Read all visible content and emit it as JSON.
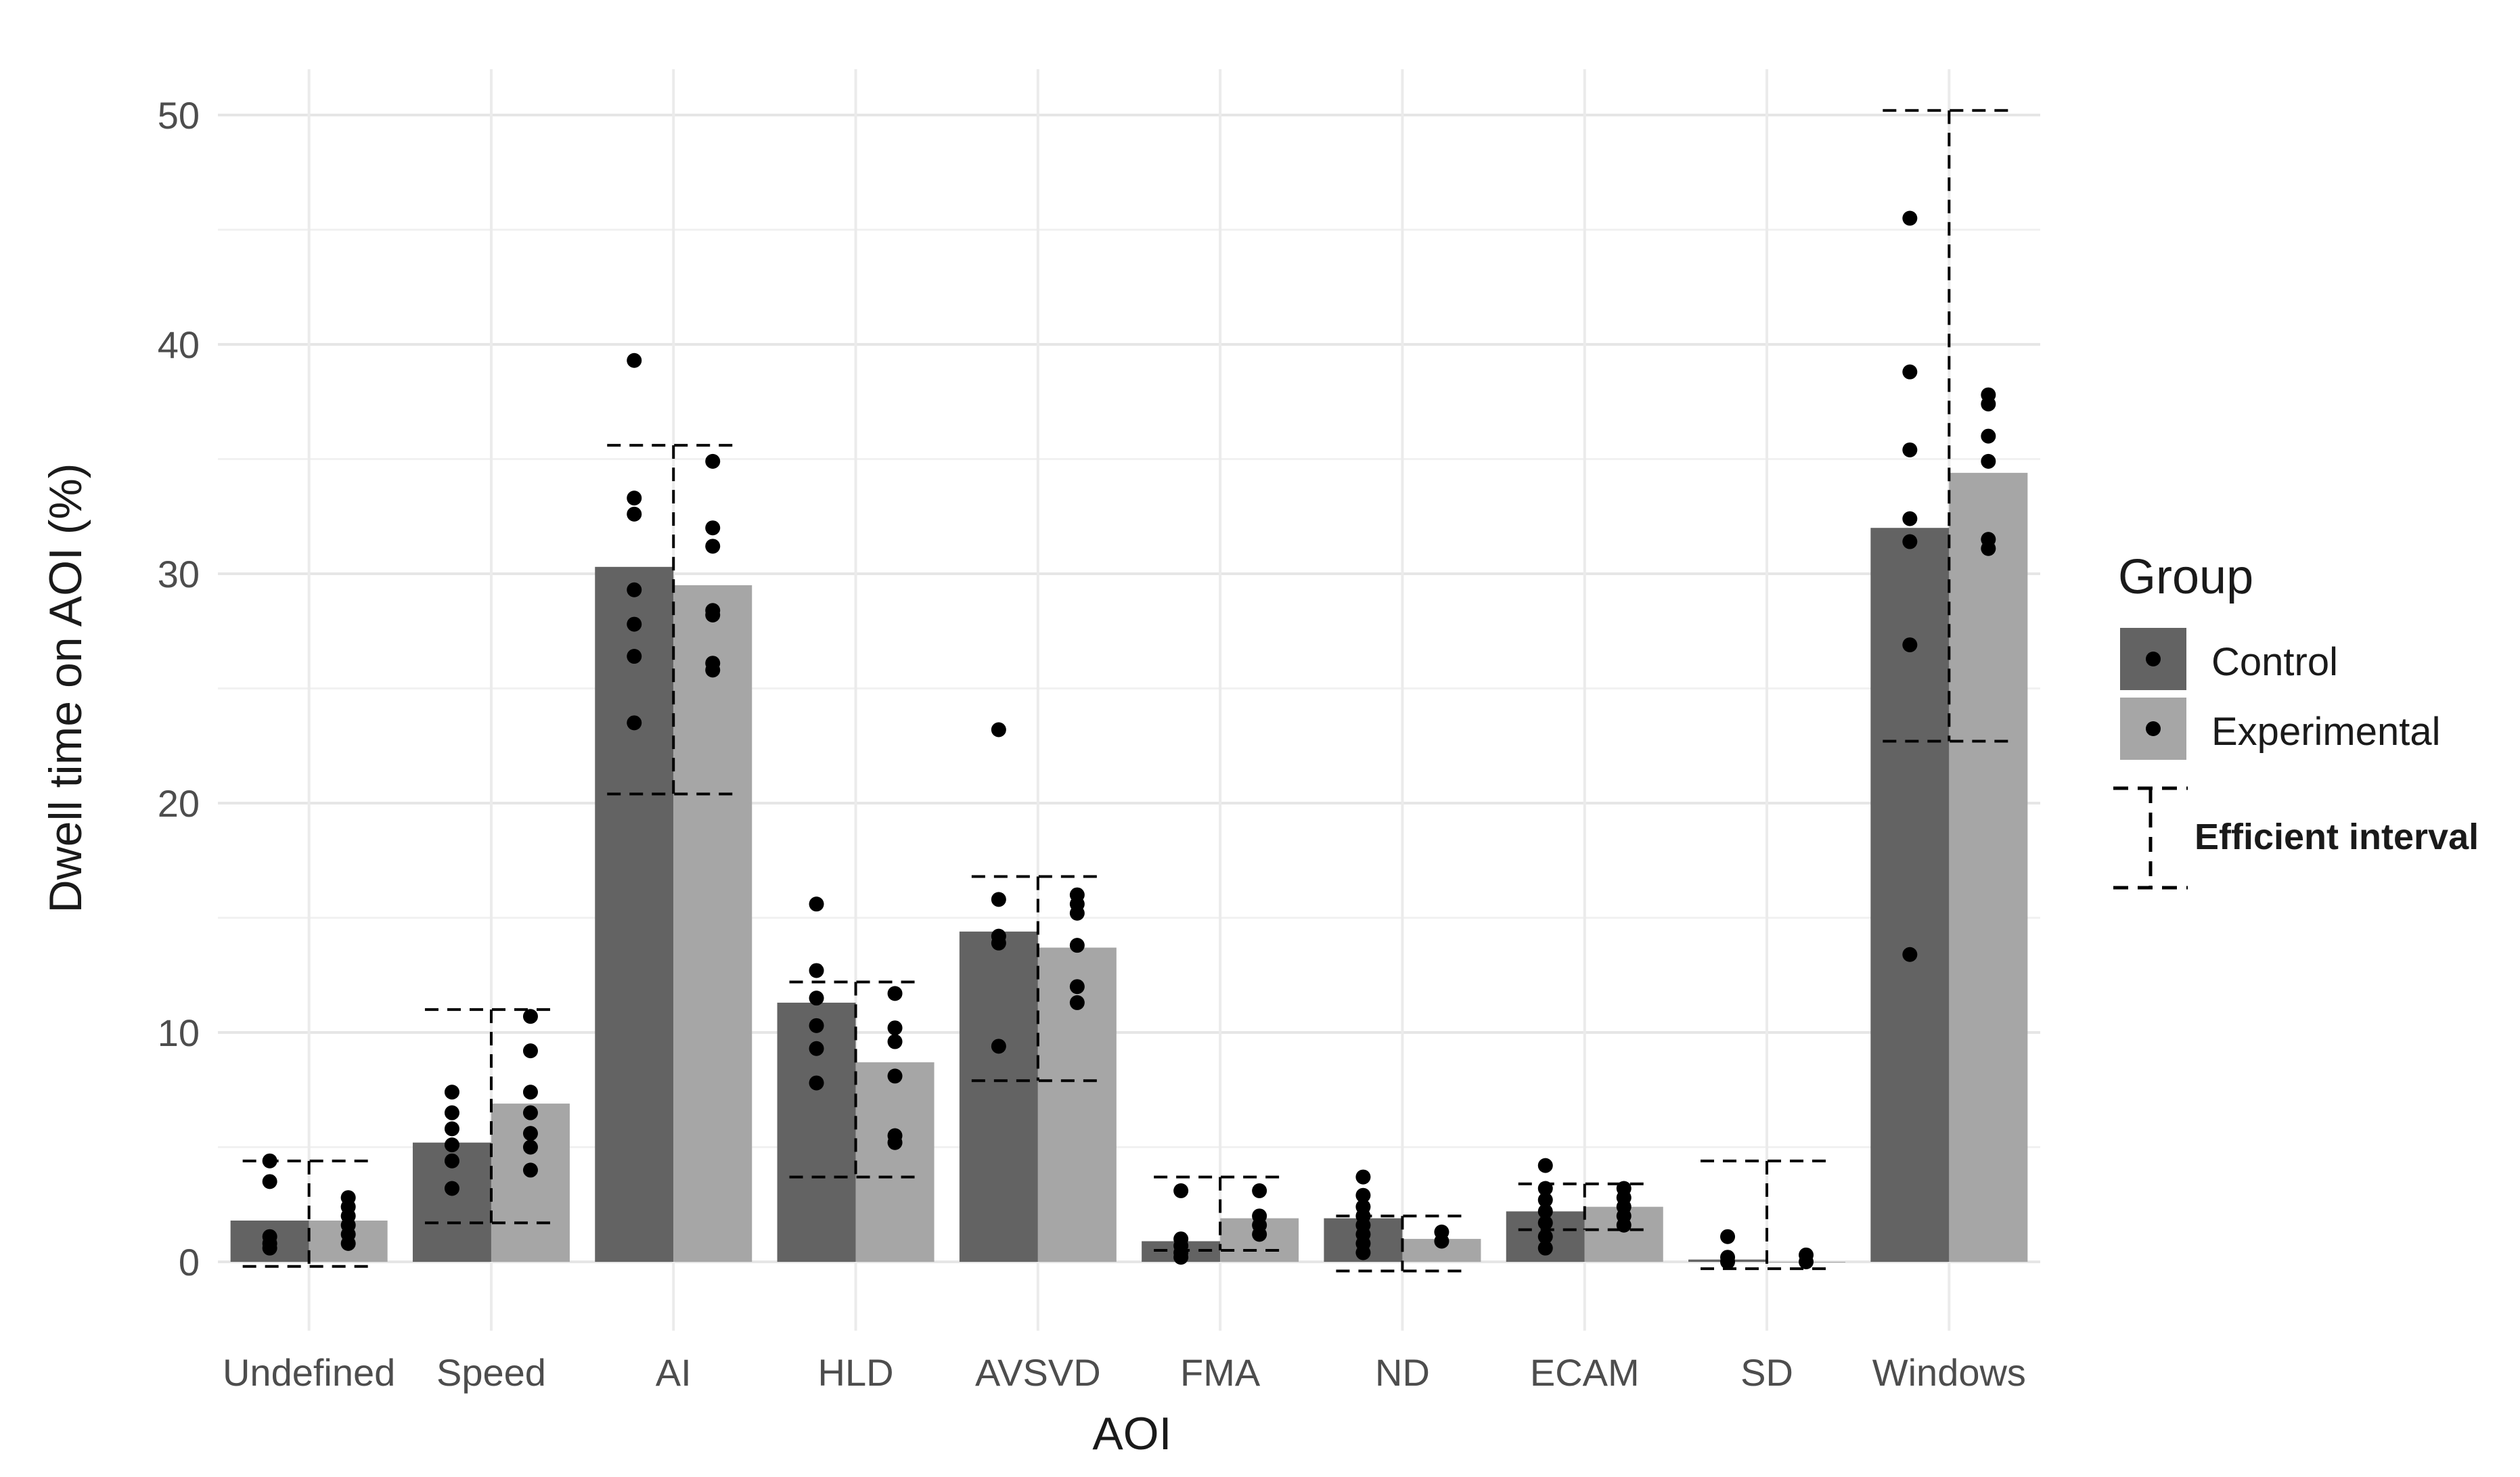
{
  "chart_data": {
    "type": "bar",
    "title": "",
    "xlabel": "AOI",
    "ylabel": "Dwell time on AOI (%)",
    "ylim": [
      -3,
      52
    ],
    "yticks": [
      0,
      10,
      20,
      30,
      40,
      50
    ],
    "categories": [
      "Undefined",
      "Speed",
      "AI",
      "HLD",
      "AVSVD",
      "FMA",
      "ND",
      "ECAM",
      "SD",
      "Windows"
    ],
    "series": [
      {
        "name": "Control",
        "color": "#636363",
        "values": [
          1.8,
          5.2,
          30.3,
          11.3,
          14.4,
          0.9,
          1.9,
          2.2,
          0.1,
          32.0
        ],
        "points": [
          [
            4.4,
            3.5,
            1.1,
            0.8,
            0.6
          ],
          [
            7.4,
            6.5,
            5.8,
            5.1,
            4.4,
            3.2
          ],
          [
            39.3,
            33.3,
            32.6,
            29.3,
            27.8,
            26.4,
            23.5
          ],
          [
            15.6,
            12.7,
            11.5,
            10.3,
            9.3,
            7.8
          ],
          [
            23.2,
            15.8,
            14.2,
            13.9,
            9.4
          ],
          [
            3.1,
            1.0,
            0.7,
            0.4,
            0.2
          ],
          [
            3.7,
            2.9,
            2.4,
            2.0,
            1.6,
            1.2,
            0.8,
            0.4
          ],
          [
            4.2,
            3.2,
            2.7,
            2.2,
            1.7,
            1.1,
            0.6
          ],
          [
            1.1,
            0.2,
            0.0
          ],
          [
            45.5,
            38.8,
            35.4,
            32.4,
            31.4,
            26.9,
            13.4
          ]
        ],
        "interval": [
          [
            -0.2,
            4.4
          ],
          [
            1.7,
            11.0
          ],
          [
            20.4,
            35.6
          ],
          [
            3.7,
            12.2
          ],
          [
            7.9,
            16.8
          ],
          [
            0.5,
            3.7
          ],
          [
            -0.4,
            2.0
          ],
          [
            1.4,
            3.4
          ],
          [
            -0.3,
            4.4
          ],
          [
            22.7,
            50.2
          ]
        ]
      },
      {
        "name": "Experimental",
        "color": "#a6a6a6",
        "values": [
          1.8,
          6.9,
          29.5,
          8.7,
          13.7,
          1.9,
          1.0,
          2.4,
          0.0,
          34.4
        ],
        "points": [
          [
            2.8,
            2.4,
            2.0,
            1.6,
            1.2,
            0.8
          ],
          [
            10.7,
            9.2,
            7.4,
            6.5,
            5.6,
            5.0,
            4.0
          ],
          [
            34.9,
            32.0,
            31.2,
            28.4,
            28.2,
            26.1,
            25.8
          ],
          [
            11.7,
            10.2,
            9.6,
            8.1,
            5.5,
            5.2
          ],
          [
            16.0,
            15.6,
            15.2,
            13.8,
            12.0,
            11.3
          ],
          [
            3.1,
            2.0,
            1.6,
            1.2
          ],
          [
            1.3,
            0.9
          ],
          [
            3.2,
            2.8,
            2.4,
            2.0,
            1.6
          ],
          [
            0.3,
            0.0
          ],
          [
            37.8,
            37.4,
            36.0,
            34.9,
            31.5,
            31.1
          ]
        ],
        "interval": [
          [
            -0.2,
            4.4
          ],
          [
            1.7,
            11.0
          ],
          [
            20.4,
            35.6
          ],
          [
            3.7,
            12.2
          ],
          [
            7.9,
            16.8
          ],
          [
            0.5,
            3.7
          ],
          [
            -0.4,
            2.0
          ],
          [
            1.4,
            3.4
          ],
          [
            -0.3,
            4.4
          ],
          [
            22.7,
            50.2
          ]
        ]
      }
    ],
    "legend": {
      "title": "Group",
      "entries": [
        "Control",
        "Experimental"
      ],
      "interval_label": "Efficient interval",
      "position": "right"
    }
  }
}
